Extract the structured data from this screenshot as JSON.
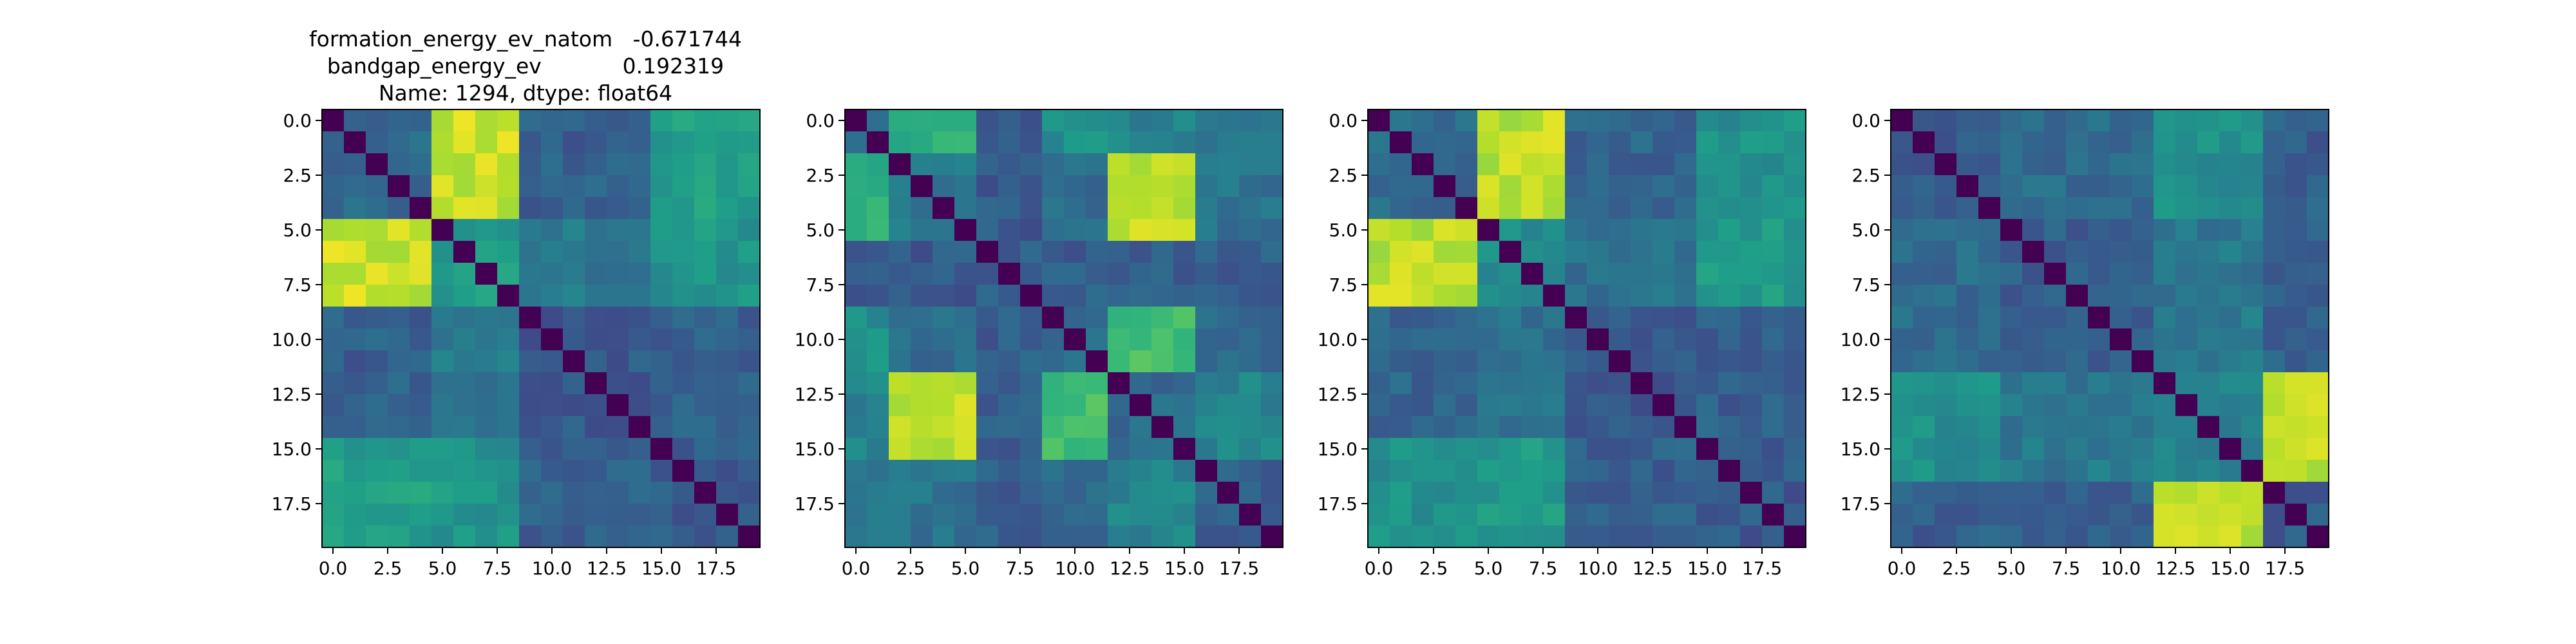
{
  "title_lines": [
    "formation_energy_ev_natom   -0.671744",
    "bandgap_energy_ev            0.192319",
    "Name: 1294, dtype: float64"
  ],
  "chart_data": [
    {
      "type": "heatmap",
      "colormap": "viridis",
      "size": 20,
      "xlim": [
        -0.5,
        19.5
      ],
      "ylim": [
        19.5,
        -0.5
      ],
      "xticks": [
        "0.0",
        "2.5",
        "5.0",
        "7.5",
        "10.0",
        "12.5",
        "15.0",
        "17.5"
      ],
      "yticks": [
        "0.0",
        "2.5",
        "5.0",
        "7.5",
        "10.0",
        "12.5",
        "15.0",
        "17.5"
      ],
      "blocks": [
        [
          0,
          5
        ],
        [
          5,
          9
        ],
        [
          9,
          15
        ],
        [
          15,
          20
        ]
      ],
      "block_levels": [
        [
          0.35,
          0.92,
          0.3,
          0.55
        ],
        [
          0.92,
          0.55,
          0.4,
          0.52
        ],
        [
          0.3,
          0.4,
          0.28,
          0.3
        ],
        [
          0.55,
          0.52,
          0.3,
          0.28
        ]
      ]
    },
    {
      "type": "heatmap",
      "colormap": "viridis",
      "size": 20,
      "xlim": [
        -0.5,
        19.5
      ],
      "ylim": [
        19.5,
        -0.5
      ],
      "xticks": [
        "0.0",
        "2.5",
        "5.0",
        "7.5",
        "10.0",
        "12.5",
        "15.0",
        "17.5"
      ],
      "yticks": [
        "0.0",
        "2.5",
        "5.0",
        "7.5",
        "10.0",
        "12.5",
        "15.0",
        "17.5"
      ],
      "blocks": [
        [
          0,
          2
        ],
        [
          2,
          6
        ],
        [
          6,
          9
        ],
        [
          9,
          12
        ],
        [
          12,
          16
        ],
        [
          16,
          20
        ]
      ],
      "block_levels": [
        [
          0.3,
          0.62,
          0.3,
          0.5,
          0.45,
          0.4
        ],
        [
          0.62,
          0.4,
          0.28,
          0.35,
          0.9,
          0.38
        ],
        [
          0.3,
          0.28,
          0.3,
          0.3,
          0.3,
          0.3
        ],
        [
          0.5,
          0.35,
          0.3,
          0.35,
          0.7,
          0.35
        ],
        [
          0.45,
          0.9,
          0.3,
          0.7,
          0.35,
          0.45
        ],
        [
          0.4,
          0.38,
          0.3,
          0.35,
          0.45,
          0.3
        ]
      ]
    },
    {
      "type": "heatmap",
      "colormap": "viridis",
      "size": 20,
      "xlim": [
        -0.5,
        19.5
      ],
      "ylim": [
        19.5,
        -0.5
      ],
      "xticks": [
        "0.0",
        "2.5",
        "5.0",
        "7.5",
        "10.0",
        "12.5",
        "15.0",
        "17.5"
      ],
      "yticks": [
        "0.0",
        "2.5",
        "5.0",
        "7.5",
        "10.0",
        "12.5",
        "15.0",
        "17.5"
      ],
      "blocks": [
        [
          0,
          5
        ],
        [
          5,
          9
        ],
        [
          9,
          15
        ],
        [
          15,
          20
        ]
      ],
      "block_levels": [
        [
          0.35,
          0.9,
          0.32,
          0.5
        ],
        [
          0.9,
          0.5,
          0.38,
          0.55
        ],
        [
          0.32,
          0.38,
          0.28,
          0.3
        ],
        [
          0.5,
          0.55,
          0.3,
          0.28
        ]
      ]
    },
    {
      "type": "heatmap",
      "colormap": "viridis",
      "size": 20,
      "xlim": [
        -0.5,
        19.5
      ],
      "ylim": [
        19.5,
        -0.5
      ],
      "xticks": [
        "0.0",
        "2.5",
        "5.0",
        "7.5",
        "10.0",
        "12.5",
        "15.0",
        "17.5"
      ],
      "yticks": [
        "0.0",
        "2.5",
        "5.0",
        "7.5",
        "10.0",
        "12.5",
        "15.0",
        "17.5"
      ],
      "blocks": [
        [
          0,
          5
        ],
        [
          5,
          12
        ],
        [
          12,
          17
        ],
        [
          17,
          20
        ]
      ],
      "block_levels": [
        [
          0.3,
          0.35,
          0.5,
          0.3
        ],
        [
          0.35,
          0.3,
          0.4,
          0.3
        ],
        [
          0.5,
          0.4,
          0.45,
          0.9
        ],
        [
          0.3,
          0.3,
          0.9,
          0.3
        ]
      ]
    }
  ]
}
